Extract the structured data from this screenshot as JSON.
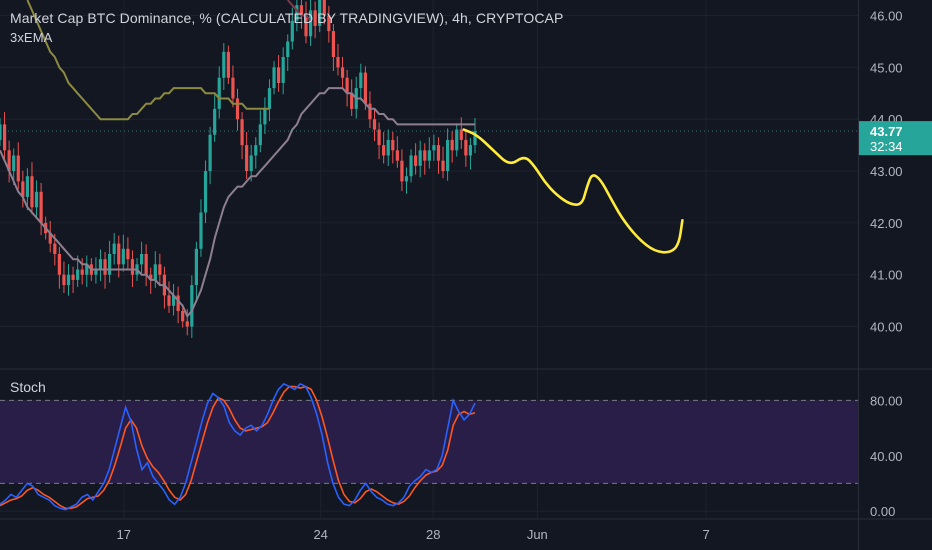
{
  "header": {
    "title": "Market Cap BTC Dominance, % (CALCULATED BY TRADINGVIEW), 4h, CRYPTOCAP",
    "indicator": "3xEMA"
  },
  "stoch": {
    "label": "Stoch"
  },
  "colors": {
    "background": "#131722",
    "up": "#26a69a",
    "down": "#ef5350",
    "ema_fast": "#8d7f8f",
    "ema_mid": "#8c8a40",
    "ema_slow": "#7d3a4d",
    "drawing": "#ffeb3b",
    "stoch_k": "#2962ff",
    "stoch_d": "#ff5722",
    "stoch_band": "#2a1f4a",
    "price_badge": "#26a69a"
  },
  "chart_data": [
    {
      "type": "candlestick",
      "title": "Market Cap BTC Dominance, % (CALCULATED BY TRADINGVIEW), 4h, CRYPTOCAP",
      "y_ticks": [
        "46.00",
        "45.00",
        "44.00",
        "43.00",
        "42.00",
        "41.00",
        "40.00"
      ],
      "y_tick_values": [
        46,
        45,
        44,
        43,
        42,
        41,
        40
      ],
      "ylim": [
        39.2,
        46.3
      ],
      "x_ticks": [
        "17",
        "24",
        "28",
        "Jun",
        "7"
      ],
      "x_tick_positions": [
        12.4,
        19.4,
        23.4,
        27.1,
        33.1
      ],
      "xlim": [
        8.0,
        38.5
      ],
      "last_price": "43.77",
      "countdown": "32:34",
      "last_value": 43.77,
      "closes": [
        43.9,
        43.4,
        43.0,
        43.3,
        42.8,
        42.5,
        42.9,
        42.3,
        42.6,
        42.0,
        41.8,
        41.6,
        41.4,
        41.0,
        40.8,
        41.0,
        40.9,
        41.1,
        41.0,
        41.2,
        41.0,
        41.1,
        41.3,
        41.0,
        41.4,
        41.6,
        41.2,
        41.5,
        41.3,
        41.0,
        41.2,
        41.4,
        41.0,
        40.9,
        41.2,
        41.0,
        40.6,
        40.4,
        40.6,
        40.3,
        40.1,
        40.0,
        40.8,
        41.5,
        42.2,
        43.0,
        43.7,
        44.2,
        44.8,
        45.3,
        44.8,
        44.4,
        44.0,
        43.5,
        43.0,
        43.3,
        43.5,
        43.9,
        44.2,
        44.6,
        45.0,
        44.7,
        45.2,
        45.5,
        45.9,
        46.2,
        46.0,
        45.6,
        46.1,
        45.8,
        46.3,
        46.0,
        45.7,
        45.2,
        45.0,
        44.8,
        44.5,
        44.2,
        44.6,
        44.9,
        44.3,
        44.0,
        43.8,
        43.5,
        43.3,
        43.6,
        43.4,
        43.2,
        42.8,
        42.9,
        43.3,
        43.1,
        43.4,
        43.2,
        43.4,
        43.5,
        43.2,
        43.0,
        43.6,
        43.4,
        43.8,
        43.6,
        43.3,
        43.5,
        43.77
      ],
      "ema_fast": [
        43.4,
        43.2,
        43.0,
        42.8,
        42.6,
        42.5,
        42.3,
        42.2,
        42.1,
        42.0,
        41.9,
        41.8,
        41.7,
        41.6,
        41.5,
        41.4,
        41.3,
        41.3,
        41.2,
        41.2,
        41.1,
        41.1,
        41.1,
        41.1,
        41.1,
        41.1,
        41.1,
        41.1,
        41.1,
        41.1,
        41.1,
        41.0,
        41.0,
        40.9,
        40.9,
        40.8,
        40.8,
        40.7,
        40.6,
        40.5,
        40.4,
        40.2,
        40.3,
        40.5,
        40.7,
        41.0,
        41.3,
        41.7,
        42.0,
        42.3,
        42.5,
        42.6,
        42.7,
        42.7,
        42.8,
        42.9,
        42.9,
        43.0,
        43.1,
        43.2,
        43.3,
        43.4,
        43.5,
        43.6,
        43.8,
        43.9,
        44.1,
        44.2,
        44.3,
        44.4,
        44.5,
        44.5,
        44.6,
        44.6,
        44.6,
        44.6,
        44.5,
        44.5,
        44.4,
        44.4,
        44.3,
        44.2,
        44.2,
        44.1,
        44.1,
        44.0,
        44.0,
        43.9,
        43.9,
        43.9,
        43.9,
        43.9,
        43.9,
        43.9,
        43.9,
        43.9,
        43.9,
        43.9,
        43.9,
        43.9,
        43.9,
        43.9,
        43.9,
        43.9,
        43.9
      ],
      "ema_mid_start": 6,
      "ema_mid": [
        46.3,
        46.1,
        45.9,
        45.7,
        45.5,
        45.3,
        45.2,
        45.0,
        44.9,
        44.7,
        44.6,
        44.5,
        44.4,
        44.3,
        44.2,
        44.1,
        44.0,
        44.0,
        44.0,
        44.0,
        44.0,
        44.0,
        44.0,
        44.1,
        44.1,
        44.2,
        44.3,
        44.3,
        44.4,
        44.4,
        44.5,
        44.5,
        44.6,
        44.6,
        44.6,
        44.6,
        44.6,
        44.6,
        44.6,
        44.5,
        44.5,
        44.5,
        44.4,
        44.4,
        44.4,
        44.3,
        44.3,
        44.3,
        44.2,
        44.2,
        44.2,
        44.2,
        44.2,
        44.2
      ],
      "ema_slow_start": 63,
      "ema_slow": [
        46.3,
        46.2,
        46.1,
        46.0,
        46.0,
        45.9
      ]
    },
    {
      "type": "line",
      "title": "Stoch",
      "y_ticks": [
        "80.00",
        "40.00",
        "0.00"
      ],
      "y_tick_values": [
        80,
        40,
        0
      ],
      "ylim": [
        -5,
        102
      ],
      "band": [
        20,
        80
      ],
      "series": [
        {
          "values": [
            5,
            8,
            12,
            10,
            15,
            20,
            18,
            12,
            10,
            8,
            4,
            2,
            1,
            3,
            5,
            10,
            12,
            8,
            14,
            20,
            30,
            45,
            60,
            75,
            65,
            45,
            30,
            35,
            25,
            20,
            15,
            8,
            5,
            10,
            20,
            35,
            50,
            65,
            78,
            85,
            82,
            76,
            64,
            58,
            55,
            60,
            62,
            58,
            62,
            70,
            80,
            88,
            92,
            90,
            88,
            92,
            90,
            82,
            70,
            55,
            35,
            20,
            10,
            5,
            4,
            8,
            15,
            20,
            14,
            10,
            8,
            5,
            4,
            6,
            10,
            18,
            22,
            25,
            30,
            28,
            30,
            40,
            60,
            80,
            72,
            66,
            70,
            78
          ]
        },
        {
          "values": [
            4,
            6,
            8,
            9,
            11,
            15,
            17,
            15,
            12,
            10,
            7,
            4,
            2,
            2,
            3,
            6,
            9,
            10,
            11,
            15,
            22,
            33,
            46,
            60,
            66,
            60,
            47,
            38,
            32,
            28,
            22,
            15,
            10,
            8,
            12,
            22,
            36,
            50,
            64,
            75,
            82,
            80,
            74,
            66,
            60,
            58,
            59,
            60,
            61,
            64,
            71,
            79,
            86,
            90,
            90,
            89,
            90,
            88,
            80,
            68,
            53,
            37,
            22,
            12,
            7,
            6,
            9,
            14,
            16,
            14,
            11,
            8,
            6,
            5,
            7,
            11,
            17,
            22,
            26,
            28,
            29,
            33,
            44,
            62,
            70,
            72,
            70,
            71
          ]
        }
      ]
    }
  ],
  "drawing": {
    "points": [
      [
        28.2,
        43.8
      ],
      [
        29,
        43.7
      ],
      [
        30,
        43.4
      ],
      [
        31,
        43.1
      ],
      [
        31.9,
        43.3
      ],
      [
        32.5,
        43.1
      ],
      [
        33.1,
        42.8
      ],
      [
        33.8,
        42.55
      ],
      [
        34.7,
        42.35
      ],
      [
        35.4,
        42.35
      ],
      [
        35.7,
        42.7
      ],
      [
        36.0,
        42.95
      ],
      [
        36.5,
        42.85
      ],
      [
        37.1,
        42.5
      ],
      [
        37.8,
        42.1
      ],
      [
        38.8,
        41.7
      ],
      [
        39.8,
        41.45
      ],
      [
        40.8,
        41.42
      ],
      [
        41.3,
        41.6
      ],
      [
        41.5,
        42.05
      ]
    ]
  }
}
